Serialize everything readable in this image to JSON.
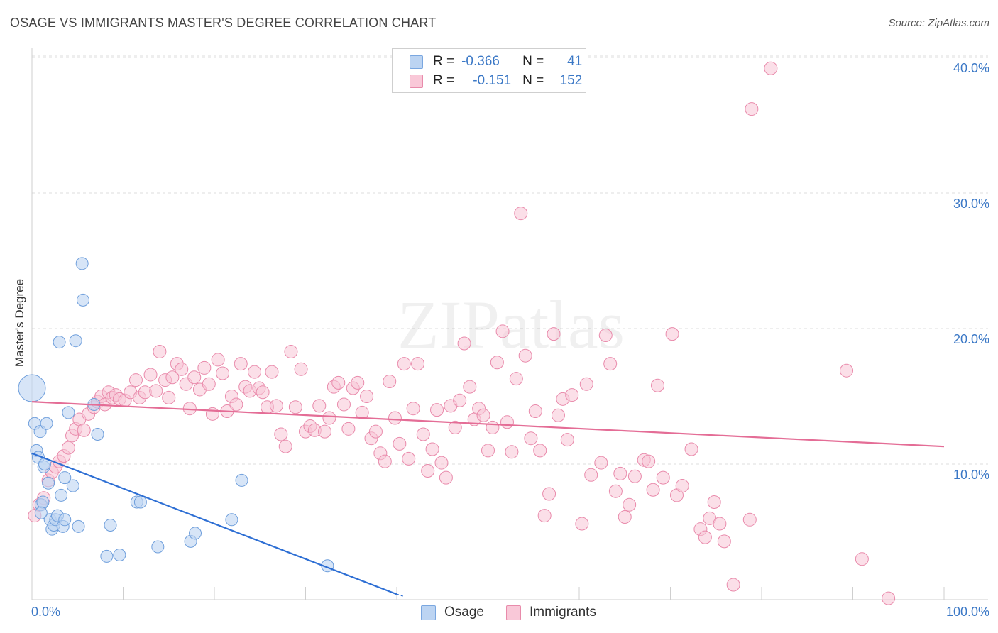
{
  "title": "OSAGE VS IMMIGRANTS MASTER'S DEGREE CORRELATION CHART",
  "source": "Source: ZipAtlas.com",
  "watermark": "ZIPatlas",
  "legend": {
    "osage": {
      "r_label": "R =",
      "r_value": "-0.366",
      "n_label": "N =",
      "n_value": "41"
    },
    "immigrants": {
      "r_label": "R =",
      "r_value": "-0.151",
      "n_label": "N =",
      "n_value": "152"
    }
  },
  "colors": {
    "osage_fill": "#bcd4f2",
    "osage_stroke": "#6f9fdc",
    "osage_line": "#2e6fd4",
    "imm_fill": "#f7c5d6",
    "imm_stroke": "#e98aab",
    "imm_line": "#e46d96",
    "tick_text": "#3b78c6"
  },
  "chart_data": {
    "type": "scatter",
    "xlabel": "",
    "ylabel": "Master's Degree",
    "xlim": [
      0,
      100
    ],
    "ylim": [
      0,
      41
    ],
    "x_tick_labels": [
      "0.0%",
      "100.0%"
    ],
    "y_ticks": [
      10,
      20,
      30,
      40
    ],
    "y_tick_labels": [
      "10.0%",
      "20.0%",
      "30.0%",
      "40.0%"
    ],
    "series": [
      {
        "name": "Osage",
        "trend": {
          "x": [
            0,
            40
          ],
          "y": [
            10.8,
            0.4
          ]
        },
        "points": [
          [
            0,
            15.6
          ],
          [
            0.3,
            13.0
          ],
          [
            0.5,
            11.0
          ],
          [
            0.7,
            10.5
          ],
          [
            0.9,
            12.4
          ],
          [
            1.0,
            7.0
          ],
          [
            1.2,
            7.2
          ],
          [
            1.3,
            9.8
          ],
          [
            1.4,
            10.0
          ],
          [
            1.6,
            13.0
          ],
          [
            1.8,
            8.6
          ],
          [
            2.0,
            5.9
          ],
          [
            2.2,
            5.2
          ],
          [
            2.4,
            5.5
          ],
          [
            2.6,
            5.9
          ],
          [
            2.8,
            6.2
          ],
          [
            3.0,
            19.0
          ],
          [
            3.2,
            7.7
          ],
          [
            3.4,
            5.4
          ],
          [
            3.6,
            5.9
          ],
          [
            4.0,
            13.8
          ],
          [
            4.5,
            8.4
          ],
          [
            4.8,
            19.1
          ],
          [
            5.1,
            5.4
          ],
          [
            5.5,
            24.8
          ],
          [
            5.6,
            22.1
          ],
          [
            6.8,
            14.4
          ],
          [
            7.2,
            12.2
          ],
          [
            8.2,
            3.2
          ],
          [
            8.6,
            5.5
          ],
          [
            9.6,
            3.3
          ],
          [
            11.5,
            7.2
          ],
          [
            11.9,
            7.2
          ],
          [
            13.8,
            3.9
          ],
          [
            17.4,
            4.3
          ],
          [
            17.9,
            4.9
          ],
          [
            21.9,
            5.9
          ],
          [
            23.0,
            8.8
          ],
          [
            32.4,
            2.5
          ],
          [
            3.6,
            9.0
          ],
          [
            1.0,
            6.4
          ]
        ]
      },
      {
        "name": "Immigrants",
        "trend": {
          "x": [
            0,
            100
          ],
          "y": [
            14.6,
            11.3
          ]
        },
        "points": [
          [
            0.3,
            6.2
          ],
          [
            0.8,
            7.0
          ],
          [
            1.3,
            7.5
          ],
          [
            1.8,
            8.8
          ],
          [
            2.2,
            9.4
          ],
          [
            2.6,
            9.8
          ],
          [
            3.0,
            10.2
          ],
          [
            3.5,
            10.6
          ],
          [
            4.0,
            11.2
          ],
          [
            4.4,
            12.1
          ],
          [
            4.8,
            12.6
          ],
          [
            5.2,
            13.3
          ],
          [
            5.7,
            12.5
          ],
          [
            6.2,
            13.7
          ],
          [
            6.8,
            14.2
          ],
          [
            7.2,
            14.6
          ],
          [
            7.6,
            15.0
          ],
          [
            8.0,
            14.4
          ],
          [
            8.4,
            15.3
          ],
          [
            8.8,
            14.9
          ],
          [
            9.2,
            15.1
          ],
          [
            9.6,
            14.8
          ],
          [
            10.2,
            14.7
          ],
          [
            10.8,
            15.3
          ],
          [
            11.4,
            16.2
          ],
          [
            11.8,
            14.9
          ],
          [
            12.4,
            15.3
          ],
          [
            13.0,
            16.6
          ],
          [
            13.6,
            15.4
          ],
          [
            14.0,
            18.3
          ],
          [
            14.6,
            16.2
          ],
          [
            15.0,
            14.9
          ],
          [
            15.4,
            16.4
          ],
          [
            15.9,
            17.4
          ],
          [
            16.4,
            17.0
          ],
          [
            16.9,
            15.9
          ],
          [
            17.3,
            14.1
          ],
          [
            17.8,
            16.4
          ],
          [
            18.4,
            15.5
          ],
          [
            18.9,
            17.1
          ],
          [
            19.4,
            15.9
          ],
          [
            19.8,
            13.7
          ],
          [
            20.4,
            17.7
          ],
          [
            20.9,
            16.7
          ],
          [
            21.4,
            13.9
          ],
          [
            21.9,
            15.0
          ],
          [
            22.4,
            14.4
          ],
          [
            22.9,
            17.4
          ],
          [
            23.4,
            15.7
          ],
          [
            23.9,
            15.4
          ],
          [
            24.4,
            16.8
          ],
          [
            24.9,
            15.6
          ],
          [
            25.3,
            15.3
          ],
          [
            25.8,
            14.2
          ],
          [
            26.3,
            16.8
          ],
          [
            26.8,
            14.3
          ],
          [
            27.3,
            12.2
          ],
          [
            27.8,
            11.3
          ],
          [
            28.4,
            18.3
          ],
          [
            28.9,
            14.2
          ],
          [
            29.5,
            17.0
          ],
          [
            30.0,
            12.4
          ],
          [
            30.5,
            12.8
          ],
          [
            31.0,
            12.5
          ],
          [
            31.5,
            14.3
          ],
          [
            32.1,
            12.4
          ],
          [
            32.6,
            13.4
          ],
          [
            33.1,
            15.7
          ],
          [
            33.6,
            16.0
          ],
          [
            34.2,
            14.4
          ],
          [
            34.7,
            12.6
          ],
          [
            35.2,
            15.6
          ],
          [
            35.7,
            16.0
          ],
          [
            36.2,
            13.8
          ],
          [
            36.7,
            15.0
          ],
          [
            37.2,
            11.9
          ],
          [
            37.7,
            12.4
          ],
          [
            38.2,
            10.8
          ],
          [
            38.7,
            10.2
          ],
          [
            39.2,
            16.1
          ],
          [
            39.8,
            13.4
          ],
          [
            40.3,
            11.5
          ],
          [
            40.8,
            17.4
          ],
          [
            41.3,
            10.4
          ],
          [
            41.8,
            14.1
          ],
          [
            42.3,
            17.4
          ],
          [
            42.9,
            12.2
          ],
          [
            43.4,
            9.5
          ],
          [
            43.9,
            11.1
          ],
          [
            44.4,
            14.0
          ],
          [
            44.9,
            10.1
          ],
          [
            45.4,
            9.0
          ],
          [
            45.9,
            14.3
          ],
          [
            46.4,
            12.7
          ],
          [
            46.9,
            14.7
          ],
          [
            47.4,
            18.9
          ],
          [
            48.0,
            15.7
          ],
          [
            48.5,
            13.3
          ],
          [
            49.0,
            14.1
          ],
          [
            49.5,
            13.6
          ],
          [
            50.0,
            11.0
          ],
          [
            50.5,
            12.7
          ],
          [
            51.0,
            17.5
          ],
          [
            51.6,
            19.8
          ],
          [
            52.1,
            13.1
          ],
          [
            52.6,
            10.9
          ],
          [
            53.1,
            16.3
          ],
          [
            53.6,
            28.5
          ],
          [
            54.1,
            18.0
          ],
          [
            54.7,
            11.9
          ],
          [
            55.2,
            13.9
          ],
          [
            55.7,
            11.0
          ],
          [
            56.2,
            6.2
          ],
          [
            56.7,
            7.8
          ],
          [
            57.2,
            19.6
          ],
          [
            57.7,
            13.6
          ],
          [
            58.2,
            14.8
          ],
          [
            58.7,
            11.8
          ],
          [
            59.2,
            15.1
          ],
          [
            60.3,
            5.6
          ],
          [
            60.8,
            15.9
          ],
          [
            61.3,
            9.2
          ],
          [
            62.4,
            10.1
          ],
          [
            62.9,
            19.5
          ],
          [
            63.4,
            17.4
          ],
          [
            64.0,
            8.0
          ],
          [
            64.5,
            9.3
          ],
          [
            65.0,
            6.1
          ],
          [
            65.5,
            7.0
          ],
          [
            66.1,
            9.1
          ],
          [
            67.1,
            10.3
          ],
          [
            67.6,
            10.2
          ],
          [
            68.1,
            8.1
          ],
          [
            68.6,
            15.8
          ],
          [
            69.2,
            9.0
          ],
          [
            70.2,
            19.6
          ],
          [
            70.7,
            7.7
          ],
          [
            71.3,
            8.4
          ],
          [
            72.3,
            11.1
          ],
          [
            73.3,
            5.2
          ],
          [
            73.8,
            4.6
          ],
          [
            74.3,
            6.0
          ],
          [
            74.8,
            7.2
          ],
          [
            75.4,
            5.6
          ],
          [
            75.9,
            4.3
          ],
          [
            76.9,
            1.1
          ],
          [
            78.7,
            5.9
          ],
          [
            78.9,
            36.2
          ],
          [
            81.0,
            39.2
          ],
          [
            89.3,
            16.9
          ],
          [
            91.0,
            3.0
          ],
          [
            93.9,
            0.1
          ]
        ]
      }
    ]
  }
}
